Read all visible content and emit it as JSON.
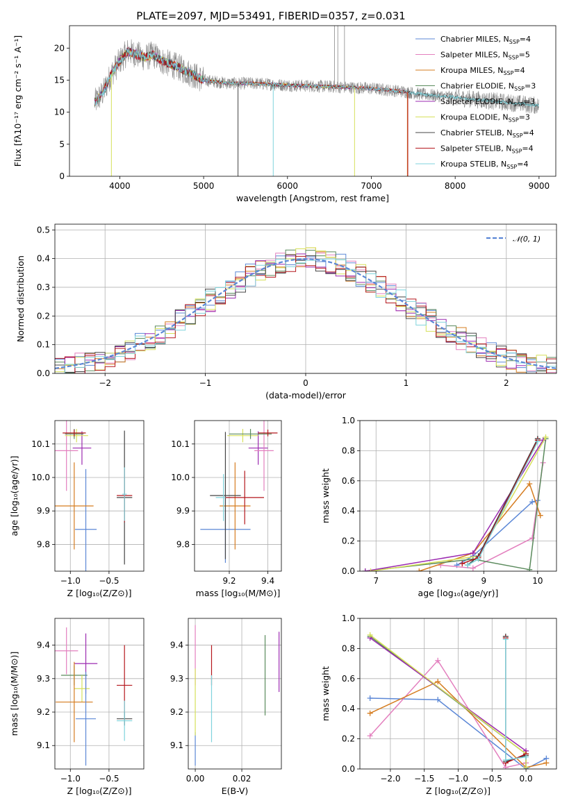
{
  "colors": {
    "Chabrier MILES": "#5b87d6",
    "Salpeter MILES": "#e37fbe",
    "Kroupa MILES": "#d57c1f",
    "Chabrier ELODIE": "#5a8a5c",
    "Salpeter ELODIE": "#9b2ab0",
    "Kroupa ELODIE": "#d6e05a",
    "Chabrier STELIB": "#444444",
    "Salpeter STELIB": "#b4161c",
    "Kroupa STELIB": "#7fd3dc",
    "grey_spectrum": "#888888"
  },
  "chart_data": [
    {
      "id": "spectrum",
      "type": "line",
      "title": "PLATE=2097, MJD=53491, FIBERID=0357, z=0.031",
      "xlabel": "wavelength [Angstrom, rest frame]",
      "ylabel": "Flux [fλ10⁻¹⁷ erg cm⁻² s⁻¹ A⁻¹]",
      "xlim": [
        3400,
        9200
      ],
      "ylim": [
        0,
        23.5
      ],
      "xticks": [
        4000,
        5000,
        6000,
        7000,
        8000,
        9000
      ],
      "xtick_labels": [
        "4000",
        "5000",
        "6000",
        "7000",
        "8000",
        "9000"
      ],
      "yticks": [
        0,
        5,
        10,
        15,
        20
      ],
      "ytick_labels": [
        "0",
        "5",
        "10",
        "15",
        "20"
      ],
      "grid": false,
      "legend_position": "top-right",
      "legend": [
        {
          "name": "Chabrier MILES",
          "nssp": "4"
        },
        {
          "name": "Salpeter MILES",
          "nssp": "5"
        },
        {
          "name": "Kroupa MILES",
          "nssp": "4"
        },
        {
          "name": "Chabrier ELODIE",
          "nssp": "3"
        },
        {
          "name": "Salpeter ELODIE",
          "nssp": "3"
        },
        {
          "name": "Kroupa ELODIE",
          "nssp": "3"
        },
        {
          "name": "Chabrier STELIB",
          "nssp": "4"
        },
        {
          "name": "Salpeter STELIB",
          "nssp": "4"
        },
        {
          "name": "Kroupa STELIB",
          "nssp": "4"
        }
      ],
      "continuum": [
        [
          3700,
          11.5
        ],
        [
          3800,
          13
        ],
        [
          3900,
          16
        ],
        [
          4000,
          18
        ],
        [
          4100,
          19.5
        ],
        [
          4200,
          19
        ],
        [
          4300,
          18.5
        ],
        [
          4400,
          19
        ],
        [
          4500,
          18
        ],
        [
          4700,
          17
        ],
        [
          5000,
          15
        ],
        [
          5300,
          14.5
        ],
        [
          5600,
          14.5
        ],
        [
          6000,
          14.2
        ],
        [
          6500,
          14
        ],
        [
          7000,
          13.7
        ],
        [
          7400,
          13.2
        ],
        [
          7600,
          12.8
        ],
        [
          8000,
          12.3
        ],
        [
          8400,
          11.8
        ],
        [
          8800,
          11.3
        ],
        [
          9000,
          11
        ]
      ]
    },
    {
      "id": "residuals",
      "type": "line",
      "xlabel": "(data-model)/error",
      "ylabel": "Normed distribution",
      "xlim": [
        -2.5,
        2.5
      ],
      "ylim": [
        0,
        0.52
      ],
      "xticks": [
        -2,
        -1,
        0,
        1,
        2
      ],
      "xtick_labels": [
        "−2",
        "−1",
        "0",
        "1",
        "2"
      ],
      "yticks": [
        0,
        0.1,
        0.2,
        0.3,
        0.4,
        0.5
      ],
      "ytick_labels": [
        "0.0",
        "0.1",
        "0.2",
        "0.3",
        "0.4",
        "0.5"
      ],
      "grid": true,
      "legend_position": "top-right",
      "legend_label": "𝒩(0, 1)",
      "normal": {
        "mean": 0,
        "sigma": 1
      },
      "bin_width": 0.1
    },
    {
      "id": "age-vs-Z",
      "type": "scatter",
      "xlabel": "Z [log₁₀(Z/Z⊙)]",
      "ylabel": "age  [log₁₀(age/yr)]",
      "xlim": [
        -1.2,
        -0.05
      ],
      "ylim": [
        9.72,
        10.17
      ],
      "xticks": [
        -1.0,
        -0.5
      ],
      "xtick_labels": [
        "−1.0",
        "−0.5"
      ],
      "yticks": [
        9.8,
        9.9,
        10.0,
        10.1
      ],
      "ytick_labels": [
        "9.8",
        "9.9",
        "10.0",
        "10.1"
      ],
      "grid": true,
      "points": [
        {
          "series": "Chabrier MILES",
          "x": -0.8,
          "y": 9.845,
          "xerr": 0.14,
          "yerr": 0.18
        },
        {
          "series": "Kroupa MILES",
          "x": -0.95,
          "y": 9.915,
          "xerr": 0.25,
          "yerr": 0.13
        },
        {
          "series": "Salpeter MILES",
          "x": -1.05,
          "y": 10.08,
          "xerr": 0.15,
          "yerr": 0.12
        },
        {
          "series": "Salpeter ELODIE",
          "x": -0.85,
          "y": 10.088,
          "xerr": 0.12,
          "yerr": 0.05
        },
        {
          "series": "Kroupa ELODIE",
          "x": -0.92,
          "y": 10.125,
          "xerr": 0.15,
          "yerr": 0.02
        },
        {
          "series": "Chabrier ELODIE",
          "x": -0.95,
          "y": 10.13,
          "xerr": 0.12,
          "yerr": 0.015
        },
        {
          "series": "Salpeter STELIB",
          "x": -0.95,
          "y": 10.133,
          "xerr": 0.15,
          "yerr": 0.01
        },
        {
          "series": "Chabrier STELIB",
          "x": -0.3,
          "y": 9.94,
          "xerr": 0.1,
          "yerr": 0.2
        },
        {
          "series": "Salpeter STELIB",
          "x": -0.3,
          "y": 9.946,
          "xerr": 0.1,
          "yerr": 0.08
        },
        {
          "series": "Kroupa STELIB",
          "x": -0.3,
          "y": 9.95,
          "xerr": 0.03,
          "yerr": 0.08
        }
      ]
    },
    {
      "id": "age-vs-mass",
      "type": "scatter",
      "xlabel": "mass [log₁₀(M/M⊙)]",
      "ylabel": "",
      "xlim": [
        9.02,
        9.47
      ],
      "ylim": [
        9.72,
        10.17
      ],
      "xticks": [
        9.2,
        9.4
      ],
      "xtick_labels": [
        "9.2",
        "9.4"
      ],
      "yticks": [
        9.8,
        9.9,
        10.0,
        10.1
      ],
      "ytick_labels": [
        "9.8",
        "9.9",
        "10.0",
        "10.1"
      ],
      "grid": true,
      "points": [
        {
          "series": "Chabrier MILES",
          "x": 9.18,
          "y": 9.845,
          "xerr": 0.13,
          "yerr": 0.1
        },
        {
          "series": "Kroupa MILES",
          "x": 9.23,
          "y": 9.915,
          "xerr": 0.08,
          "yerr": 0.13
        },
        {
          "series": "Chabrier STELIB",
          "x": 9.18,
          "y": 9.946,
          "xerr": 0.08,
          "yerr": 0.19
        },
        {
          "series": "Kroupa STELIB",
          "x": 9.17,
          "y": 9.94,
          "xerr": 0.04,
          "yerr": 0.07
        },
        {
          "series": "Salpeter STELIB",
          "x": 9.28,
          "y": 9.94,
          "xerr": 0.1,
          "yerr": 0.08
        },
        {
          "series": "Salpeter ELODIE",
          "x": 9.35,
          "y": 10.088,
          "xerr": 0.05,
          "yerr": 0.05
        },
        {
          "series": "Salpeter MILES",
          "x": 9.38,
          "y": 10.08,
          "xerr": 0.05,
          "yerr": 0.12
        },
        {
          "series": "Kroupa ELODIE",
          "x": 9.27,
          "y": 10.125,
          "xerr": 0.08,
          "yerr": 0.02
        },
        {
          "series": "Chabrier ELODIE",
          "x": 9.31,
          "y": 10.13,
          "xerr": 0.11,
          "yerr": 0.015
        },
        {
          "series": "Salpeter STELIB",
          "x": 9.4,
          "y": 10.133,
          "xerr": 0.05,
          "yerr": 0.01
        }
      ]
    },
    {
      "id": "weight-vs-age",
      "type": "line",
      "xlabel": "age  [log₁₀(age/yr)]",
      "ylabel": "mass weight",
      "xlim": [
        6.7,
        10.35
      ],
      "ylim": [
        0,
        1
      ],
      "xticks": [
        7,
        8,
        9,
        10
      ],
      "xtick_labels": [
        "7",
        "8",
        "9",
        "10"
      ],
      "yticks": [
        0,
        0.2,
        0.4,
        0.6,
        0.8,
        1.0
      ],
      "ytick_labels": [
        "0.0",
        "0.2",
        "0.4",
        "0.6",
        "0.8",
        "1.0"
      ],
      "grid": true,
      "series": [
        {
          "name": "Chabrier MILES",
          "x": [
            8.5,
            8.8,
            9.9,
            10.0
          ],
          "y": [
            0.04,
            0.1,
            0.46,
            0.47
          ]
        },
        {
          "name": "Salpeter MILES",
          "x": [
            8.2,
            8.8,
            9.9,
            10.1
          ],
          "y": [
            0.04,
            0.02,
            0.22,
            0.72
          ]
        },
        {
          "name": "Kroupa MILES",
          "x": [
            7.8,
            8.8,
            9.85,
            10.05
          ],
          "y": [
            0.0,
            0.12,
            0.58,
            0.37
          ]
        },
        {
          "name": "Chabrier ELODIE",
          "x": [
            6.8,
            8.8,
            9.85,
            10.15
          ],
          "y": [
            0.0,
            0.08,
            0.01,
            0.88
          ]
        },
        {
          "name": "Salpeter ELODIE",
          "x": [
            6.8,
            8.8,
            10.1
          ],
          "y": [
            0.0,
            0.12,
            0.87
          ]
        },
        {
          "name": "Kroupa ELODIE",
          "x": [
            6.9,
            8.9,
            10.15
          ],
          "y": [
            0.0,
            0.1,
            0.89
          ]
        },
        {
          "name": "Chabrier STELIB",
          "x": [
            8.7,
            8.9,
            10.0
          ],
          "y": [
            0.04,
            0.1,
            0.88
          ]
        },
        {
          "name": "Salpeter STELIB",
          "x": [
            8.6,
            8.9,
            10.0
          ],
          "y": [
            0.05,
            0.09,
            0.87
          ]
        },
        {
          "name": "Kroupa STELIB",
          "x": [
            8.7,
            8.9,
            10.0
          ],
          "y": [
            0.04,
            0.08,
            0.86
          ]
        }
      ]
    },
    {
      "id": "mass-vs-Z",
      "type": "scatter",
      "xlabel": "Z [log₁₀(Z/Z⊙)]",
      "ylabel": "mass [log₁₀(M/M⊙)]",
      "xlim": [
        -1.2,
        -0.05
      ],
      "ylim": [
        9.03,
        9.48
      ],
      "xticks": [
        -1.0,
        -0.5
      ],
      "xtick_labels": [
        "−1.0",
        "−0.5"
      ],
      "yticks": [
        9.1,
        9.2,
        9.3,
        9.4
      ],
      "ytick_labels": [
        "9.1",
        "9.2",
        "9.3",
        "9.4"
      ],
      "grid": true,
      "points": [
        {
          "series": "Salpeter MILES",
          "x": -1.05,
          "y": 9.383,
          "xerr": 0.15,
          "yerr": 0.07
        },
        {
          "series": "Salpeter ELODIE",
          "x": -0.8,
          "y": 9.345,
          "xerr": 0.15,
          "yerr": 0.09
        },
        {
          "series": "Chabrier ELODIE",
          "x": -0.95,
          "y": 9.31,
          "xerr": 0.17,
          "yerr": 0.03
        },
        {
          "series": "Kroupa ELODIE",
          "x": -0.85,
          "y": 9.27,
          "xerr": 0.1,
          "yerr": 0.04
        },
        {
          "series": "Kroupa MILES",
          "x": -0.95,
          "y": 9.23,
          "xerr": 0.24,
          "yerr": 0.12
        },
        {
          "series": "Chabrier MILES",
          "x": -0.8,
          "y": 9.18,
          "xerr": 0.13,
          "yerr": 0.14
        },
        {
          "series": "Salpeter STELIB",
          "x": -0.3,
          "y": 9.28,
          "xerr": 0.1,
          "yerr": 0.12
        },
        {
          "series": "Chabrier STELIB",
          "x": -0.3,
          "y": 9.18,
          "xerr": 0.1,
          "yerr": 0.02
        },
        {
          "series": "Kroupa STELIB",
          "x": -0.3,
          "y": 9.174,
          "xerr": 0.1,
          "yerr": 0.06
        }
      ]
    },
    {
      "id": "mass-vs-ebv",
      "type": "scatter",
      "xlabel": "E(B-V)",
      "ylabel": "",
      "xlim": [
        -0.003,
        0.037
      ],
      "ylim": [
        9.03,
        9.48
      ],
      "xticks": [
        0.0,
        0.02
      ],
      "xtick_labels": [
        "0.00",
        "0.02"
      ],
      "yticks": [
        9.1,
        9.2,
        9.3,
        9.4
      ],
      "ytick_labels": [
        "9.1",
        "9.2",
        "9.3",
        "9.4"
      ],
      "grid": true,
      "points": [
        {
          "series": "Chabrier MILES",
          "x": 0.0,
          "y": 9.09,
          "xerr": 0,
          "yerr": 0.05
        },
        {
          "series": "Salpeter MILES",
          "x": 0.0,
          "y": 9.37,
          "xerr": 0,
          "yerr": 0.09
        },
        {
          "series": "Kroupa ELODIE",
          "x": 0.0,
          "y": 9.23,
          "xerr": 0,
          "yerr": 0.1
        },
        {
          "series": "Salpeter STELIB",
          "x": 0.007,
          "y": 9.34,
          "xerr": 0,
          "yerr": 0.06
        },
        {
          "series": "Kroupa STELIB",
          "x": 0.007,
          "y": 9.21,
          "xerr": 0,
          "yerr": 0.1
        },
        {
          "series": "Chabrier ELODIE",
          "x": 0.03,
          "y": 9.31,
          "xerr": 0,
          "yerr": 0.12
        },
        {
          "series": "Salpeter ELODIE",
          "x": 0.036,
          "y": 9.35,
          "xerr": 0,
          "yerr": 0.09
        }
      ]
    },
    {
      "id": "weight-vs-Z",
      "type": "line",
      "xlabel": "Z [log₁₀(Z/Z⊙)]",
      "ylabel": "mass weight",
      "xlim": [
        -2.45,
        0.45
      ],
      "ylim": [
        0,
        1
      ],
      "xticks": [
        -2.0,
        -1.5,
        -1.0,
        -0.5,
        0.0
      ],
      "xtick_labels": [
        "−2.0",
        "−1.5",
        "−1.0",
        "−0.5",
        "0.0"
      ],
      "yticks": [
        0,
        0.2,
        0.4,
        0.6,
        0.8,
        1.0
      ],
      "ytick_labels": [
        "0.0",
        "0.2",
        "0.4",
        "0.6",
        "0.8",
        "1.0"
      ],
      "grid": true,
      "series": [
        {
          "name": "Chabrier MILES",
          "x": [
            -2.3,
            -1.3,
            0.0,
            0.3
          ],
          "y": [
            0.47,
            0.46,
            0.0,
            0.07
          ]
        },
        {
          "name": "Salpeter MILES",
          "x": [
            -2.3,
            -1.3,
            -0.3,
            0.0
          ],
          "y": [
            0.22,
            0.72,
            0.01,
            0.04
          ]
        },
        {
          "name": "Kroupa MILES",
          "x": [
            -2.3,
            -1.3,
            0.0,
            0.3
          ],
          "y": [
            0.37,
            0.58,
            0.01,
            0.04
          ]
        },
        {
          "name": "Chabrier ELODIE",
          "x": [
            -2.3,
            0.0,
            0.0
          ],
          "y": [
            0.88,
            0.1,
            0.01
          ]
        },
        {
          "name": "Salpeter ELODIE",
          "x": [
            -2.3,
            0.0,
            0.0
          ],
          "y": [
            0.87,
            0.12,
            0.01
          ]
        },
        {
          "name": "Kroupa ELODIE",
          "x": [
            -2.3,
            0.0,
            0.0
          ],
          "y": [
            0.89,
            0.1,
            0.01
          ]
        },
        {
          "name": "Chabrier STELIB",
          "x": [
            -0.3,
            -0.3,
            0.0
          ],
          "y": [
            0.88,
            0.05,
            0.09
          ]
        },
        {
          "name": "Salpeter STELIB",
          "x": [
            -0.3,
            -0.3,
            0.0
          ],
          "y": [
            0.87,
            0.04,
            0.1
          ]
        },
        {
          "name": "Kroupa STELIB",
          "x": [
            -0.3,
            -0.3,
            0.0
          ],
          "y": [
            0.86,
            0.06,
            0.08
          ]
        }
      ]
    }
  ]
}
